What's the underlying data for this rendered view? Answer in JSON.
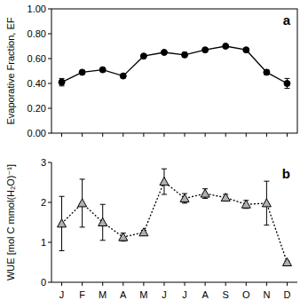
{
  "chart_data": [
    {
      "type": "line",
      "title": "a",
      "ylabel": "Evaporative Fraction, EF",
      "categories": [
        "J",
        "F",
        "M",
        "A",
        "M",
        "J",
        "J",
        "A",
        "S",
        "O",
        "N",
        "D"
      ],
      "ylim": [
        0,
        1
      ],
      "yticks": [
        {
          "value": 0,
          "label": "0.00"
        },
        {
          "value": 0.2,
          "label": "0.20"
        },
        {
          "value": 0.4,
          "label": "0.40"
        },
        {
          "value": 0.6,
          "label": "0.60"
        },
        {
          "value": 0.8,
          "label": "0.80"
        },
        {
          "value": 1,
          "label": "1.00"
        }
      ],
      "tick_labels": "y",
      "series": [
        {
          "color": "#000000",
          "marker": "circle",
          "line_style": "solid",
          "values": [
            0.41,
            0.49,
            0.51,
            0.46,
            0.62,
            0.65,
            0.63,
            0.67,
            0.7,
            0.67,
            0.49,
            0.4
          ],
          "errors": [
            0.03,
            0.01,
            0.01,
            0.01,
            0.01,
            0.01,
            0.02,
            0.01,
            0.01,
            0.01,
            0.02,
            0.04
          ]
        }
      ]
    },
    {
      "type": "line",
      "title": "b",
      "ylabel": "WUE [mol C mmol(H₂O)⁻¹]",
      "categories": [
        "J",
        "F",
        "M",
        "A",
        "M",
        "J",
        "J",
        "A",
        "S",
        "O",
        "N",
        "D"
      ],
      "ylim": [
        0,
        3
      ],
      "yticks": [
        0,
        1,
        2,
        3
      ],
      "series": [
        {
          "color": "#b0b0b0",
          "marker": "triangle",
          "line_style": "dotted",
          "values": [
            1.47,
            1.98,
            1.5,
            1.13,
            1.25,
            2.52,
            2.1,
            2.22,
            2.12,
            1.95,
            1.98,
            0.5
          ],
          "errors": [
            0.68,
            0.6,
            0.45,
            0.1,
            0.05,
            0.32,
            0.12,
            0.12,
            0.08,
            0.1,
            0.55,
            0.03
          ]
        }
      ]
    }
  ]
}
